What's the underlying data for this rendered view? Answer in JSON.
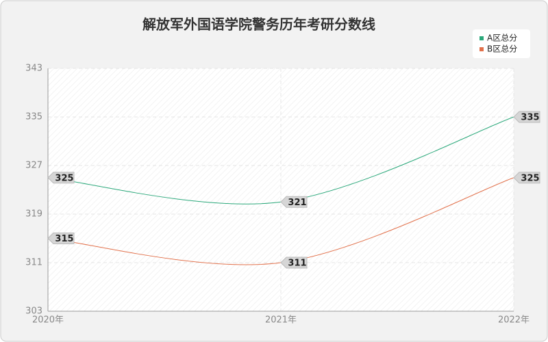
{
  "chart_data": {
    "type": "line",
    "title": "解放军外国语学院警务历年考研分数线",
    "categories": [
      "2020年",
      "2021年",
      "2022年"
    ],
    "series": [
      {
        "name": "A区总分",
        "color": "#2aa87a",
        "values": [
          325,
          321,
          335
        ]
      },
      {
        "name": "B区总分",
        "color": "#e2704a",
        "values": [
          315,
          311,
          325
        ]
      }
    ],
    "ylim": [
      303,
      343
    ],
    "yticks": [
      303,
      311,
      319,
      327,
      335,
      343
    ],
    "grid": true,
    "legend": "top-right",
    "smooth": true
  }
}
